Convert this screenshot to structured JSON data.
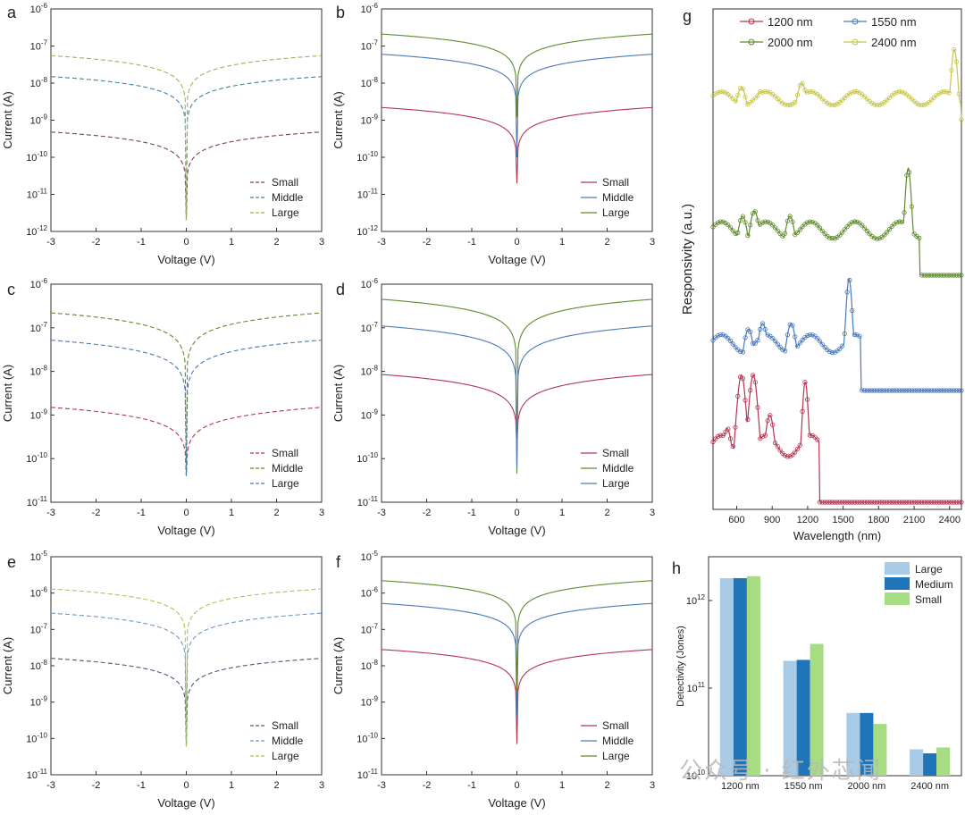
{
  "colors": {
    "red": "#b5344f",
    "blue": "#4a79b8",
    "green": "#5f8a2f",
    "olive": "#7aaa3b",
    "lime": "#a9cc4e",
    "yellow": "#c8c64a",
    "light_blue": "#a8cce8",
    "dark_blue": "#1f75b8",
    "light_green": "#a6dc82"
  },
  "iv_axes": {
    "xlabel": "Voltage (V)",
    "ylabel": "Current (A)",
    "x_ticks": [
      "-3",
      "-2",
      "-1",
      "0",
      "1",
      "2",
      "3"
    ]
  },
  "legend_sml": [
    "Small",
    "Middle",
    "Large"
  ],
  "watermark": "公众号 · 红外芯闻",
  "chart_data": [
    {
      "id": "a",
      "type": "line",
      "style": "dashed",
      "yscale": "log",
      "xlim": [
        -3,
        3
      ],
      "ylim_exp": [
        -12,
        -6
      ],
      "y_tick_exps": [
        -12,
        -11,
        -10,
        -9,
        -8,
        -7,
        -6
      ],
      "series": [
        {
          "name": "Small",
          "color": "#7a3f6a",
          "at_3V": 4.8e-10,
          "min": 2e-12
        },
        {
          "name": "Middle",
          "color": "#3e84a0",
          "at_3V": 1.5e-08,
          "min": 2e-12
        },
        {
          "name": "Large",
          "color": "#9ab55a",
          "at_3V": 5.5e-08,
          "min": 2e-12
        }
      ]
    },
    {
      "id": "b",
      "type": "line",
      "style": "solid",
      "yscale": "log",
      "xlim": [
        -3,
        3
      ],
      "ylim_exp": [
        -12,
        -6
      ],
      "y_tick_exps": [
        -12,
        -11,
        -10,
        -9,
        -8,
        -7,
        -6
      ],
      "series": [
        {
          "name": "Small",
          "color": "#b5344f",
          "at_3V": 2.2e-09,
          "min": 2e-11
        },
        {
          "name": "Middle",
          "color": "#4a79b8",
          "at_3V": 6e-08,
          "min": 1e-10
        },
        {
          "name": "Large",
          "color": "#5f8a2f",
          "at_3V": 2.1e-07,
          "min": 1.2e-09
        }
      ]
    },
    {
      "id": "c",
      "type": "line",
      "style": "dashed",
      "yscale": "log",
      "xlim": [
        -3,
        3
      ],
      "ylim_exp": [
        -11,
        -6
      ],
      "y_tick_exps": [
        -11,
        -10,
        -9,
        -8,
        -7,
        -6
      ],
      "series": [
        {
          "name": "Small",
          "color": "#b5344f",
          "at_3V": 1.5e-09,
          "min": 4e-11
        },
        {
          "name": "Middle",
          "color": "#5f8a2f",
          "at_3V": 2.2e-07,
          "min": 4e-11
        },
        {
          "name": "Large",
          "color": "#4a79b8",
          "at_3V": 5.2e-08,
          "min": 4e-11
        }
      ]
    },
    {
      "id": "d",
      "type": "line",
      "style": "solid",
      "yscale": "log",
      "xlim": [
        -3,
        3
      ],
      "ylim_exp": [
        -11,
        -6
      ],
      "y_tick_exps": [
        -11,
        -10,
        -9,
        -8,
        -7,
        -6
      ],
      "series": [
        {
          "name": "Small",
          "color": "#b5344f",
          "at_3V": 8.5e-09,
          "min": 1.5e-10
        },
        {
          "name": "Middle",
          "color": "#5f8a2f",
          "at_3V": 4.5e-07,
          "min": 4.5e-11
        },
        {
          "name": "Large",
          "color": "#4a79b8",
          "at_3V": 1.1e-07,
          "min": 6e-11
        }
      ]
    },
    {
      "id": "e",
      "type": "line",
      "style": "dashed",
      "yscale": "log",
      "xlim": [
        -3,
        3
      ],
      "ylim_exp": [
        -11,
        -5
      ],
      "y_tick_exps": [
        -11,
        -10,
        -9,
        -8,
        -7,
        -6,
        -5
      ],
      "series": [
        {
          "name": "Small",
          "color": "#4a5a7a",
          "at_3V": 1.6e-08,
          "min": 6e-11
        },
        {
          "name": "Middle",
          "color": "#6a9ac8",
          "at_3V": 2.8e-07,
          "min": 6e-11
        },
        {
          "name": "Large",
          "color": "#a9c45a",
          "at_3V": 1.3e-06,
          "min": 6e-11
        }
      ]
    },
    {
      "id": "f",
      "type": "line",
      "style": "solid",
      "yscale": "log",
      "xlim": [
        -3,
        3
      ],
      "ylim_exp": [
        -11,
        -5
      ],
      "y_tick_exps": [
        -11,
        -10,
        -9,
        -8,
        -7,
        -6,
        -5
      ],
      "series": [
        {
          "name": "Small",
          "color": "#b5344f",
          "at_3V": 2.8e-08,
          "min": 7e-11
        },
        {
          "name": "Middle",
          "color": "#4a79b8",
          "at_3V": 5.2e-07,
          "min": 4e-10
        },
        {
          "name": "Large",
          "color": "#5f8a2f",
          "at_3V": 2.2e-06,
          "min": 2e-09
        }
      ]
    },
    {
      "id": "g",
      "type": "line",
      "style": "line+markers",
      "xlabel": "Wavelength (nm)",
      "ylabel": "Responsivity (a.u.)",
      "xlim": [
        400,
        2500
      ],
      "x_ticks": [
        600,
        900,
        1200,
        1500,
        1800,
        2100,
        2400
      ],
      "legend": [
        "1200 nm",
        "1550 nm",
        "2000 nm",
        "2400 nm"
      ],
      "series": [
        {
          "name": "1200 nm",
          "color": "#b5344f",
          "peaks": [
            [
              520,
              0.55
            ],
            [
              640,
              0.95
            ],
            [
              740,
              0.95
            ],
            [
              880,
              0.65
            ],
            [
              1180,
              0.9
            ]
          ],
          "cutoff": 1300
        },
        {
          "name": "1550 nm",
          "color": "#4a79b8",
          "peaks": [
            [
              700,
              0.55
            ],
            [
              820,
              0.6
            ],
            [
              1060,
              0.6
            ],
            [
              1300,
              0.4
            ],
            [
              1550,
              1.0
            ]
          ],
          "cutoff": 1650
        },
        {
          "name": "2000 nm",
          "color": "#5f8a2f",
          "peaks": [
            [
              650,
              0.55
            ],
            [
              750,
              0.6
            ],
            [
              1050,
              0.55
            ],
            [
              1400,
              0.35
            ],
            [
              1650,
              0.45
            ],
            [
              2050,
              1.0
            ]
          ],
          "cutoff": 2150
        },
        {
          "name": "2400 nm",
          "color": "#c8c64a",
          "peaks": [
            [
              640,
              0.55
            ],
            [
              800,
              0.5
            ],
            [
              1150,
              0.6
            ],
            [
              1700,
              0.35
            ],
            [
              1950,
              0.4
            ],
            [
              2440,
              1.0
            ]
          ],
          "cutoff": 2500
        }
      ]
    },
    {
      "id": "h",
      "type": "bar",
      "yscale": "log",
      "ylabel": "Detectivity (Jones)",
      "ylim_exp": [
        10,
        12.5
      ],
      "y_tick_exps": [
        10,
        11,
        12
      ],
      "categories": [
        "1200 nm",
        "1550 nm",
        "2000 nm",
        "2400 nm"
      ],
      "legend": [
        "Large",
        "Medium",
        "Small"
      ],
      "series": [
        {
          "name": "Large",
          "color": "#a8cce8",
          "values": [
            1800000000000.0,
            205000000000.0,
            52000000000.0,
            20000000000.0
          ]
        },
        {
          "name": "Medium",
          "color": "#1f75b8",
          "values": [
            1800000000000.0,
            210000000000.0,
            52000000000.0,
            18000000000.0
          ]
        },
        {
          "name": "Small",
          "color": "#a6dc82",
          "values": [
            1900000000000.0,
            320000000000.0,
            39000000000.0,
            21000000000.0
          ]
        }
      ]
    }
  ]
}
